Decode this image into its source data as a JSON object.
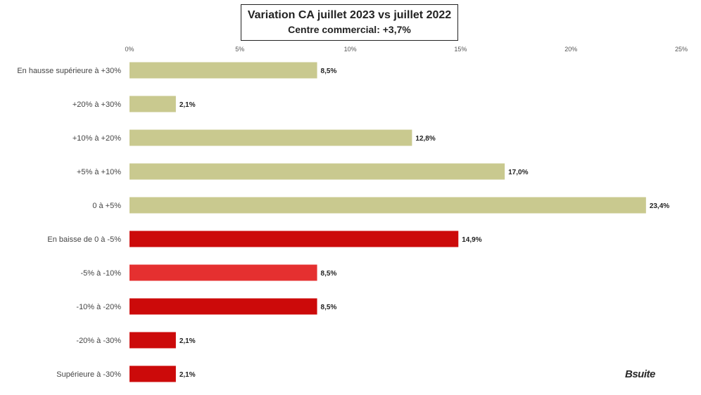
{
  "title": {
    "line1": "Variation CA juillet 2023 vs juillet 2022",
    "line2": "Centre commercial: +3,7%"
  },
  "watermark": "Bsuite",
  "chart_data": {
    "type": "bar",
    "orientation": "horizontal",
    "categories": [
      "En hausse supérieure à +30%",
      "+20% à +30%",
      "+10% à +20%",
      "+5% à +10%",
      "0 à +5%",
      "En baisse de 0 à -5%",
      "-5% à -10%",
      "-10% à -20%",
      "-20% à -30%",
      "Supérieure à -30%"
    ],
    "values": [
      8.5,
      2.1,
      12.8,
      17.0,
      23.4,
      14.9,
      8.5,
      8.5,
      2.1,
      2.1
    ],
    "value_labels": [
      "8,5%",
      "2,1%",
      "12,8%",
      "17,0%",
      "23,4%",
      "14,9%",
      "8,5%",
      "8,5%",
      "2,1%",
      "2,1%"
    ],
    "bar_colors": [
      "#c9c98f",
      "#c9c98f",
      "#c9c98f",
      "#c9c98f",
      "#c9c98f",
      "#cc0a0a",
      "#e53030",
      "#cc0a0a",
      "#cc0a0a",
      "#cc0a0a"
    ],
    "xlim": [
      0,
      25
    ],
    "x_ticks": [
      0,
      5,
      10,
      15,
      20,
      25
    ],
    "x_tick_labels": [
      "0%",
      "5%",
      "10%",
      "15%",
      "20%",
      "25%"
    ],
    "x_axis_position": "top",
    "grid": false,
    "legend": false
  }
}
